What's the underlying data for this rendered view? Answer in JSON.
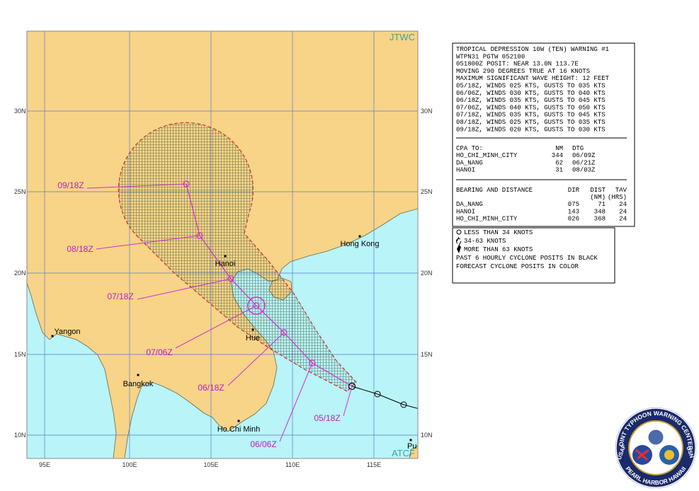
{
  "map": {
    "corner_labels": {
      "top": "JTWC",
      "bottom": "ATCF"
    },
    "lat_labels": [
      "30N",
      "25N",
      "20N",
      "15N",
      "10N"
    ],
    "lon_labels": [
      "95E",
      "100E",
      "105E",
      "110E",
      "115E"
    ],
    "places": [
      "Hanoi",
      "Hong Kong",
      "Yangon",
      "Bangkok",
      "Hue",
      "Ho Chi Minh",
      "Pu"
    ],
    "forecast_labels": [
      "05/18Z",
      "06/06Z",
      "06/18Z",
      "07/06Z",
      "07/18Z",
      "08/18Z",
      "09/18Z"
    ]
  },
  "warning": {
    "lines": [
      "TROPICAL DEPRESSION 10W (TEN) WARNING #1",
      "WTPN31 PGTW 052100",
      "051800Z POSIT: NEAR 13.0N 113.7E",
      "MOVING 290 DEGREES TRUE AT 16 KNOTS",
      "MAXIMUM SIGNIFICANT WAVE HEIGHT: 12 FEET",
      "05/18Z, WINDS 025 KTS, GUSTS TO 035 KTS",
      "06/06Z, WINDS 030 KTS, GUSTS TO 040 KTS",
      "06/18Z, WINDS 035 KTS, GUSTS TO 045 KTS",
      "07/06Z, WINDS 040 KTS, GUSTS TO 050 KTS",
      "07/18Z, WINDS 035 KTS, GUSTS TO 045 KTS",
      "08/18Z, WINDS 025 KTS, GUSTS TO 035 KTS",
      "09/18Z, WINDS 020 KTS, GUSTS TO 030 KTS"
    ],
    "cpa": {
      "header": [
        "CPA TO:",
        "NM",
        "DTG"
      ],
      "rows": [
        [
          "HO_CHI_MINH_CITY",
          "344",
          "06/09Z"
        ],
        [
          "DA_NANG",
          "62",
          "06/21Z"
        ],
        [
          "HANOI",
          "31",
          "08/03Z"
        ]
      ]
    },
    "bearing": {
      "header": [
        "BEARING AND DISTANCE",
        "DIR",
        "DIST",
        "TAV"
      ],
      "subheader": [
        "(NM)",
        "(HRS)"
      ],
      "rows": [
        [
          "DA_NANG",
          "075",
          "71",
          "24"
        ],
        [
          "HANOI",
          "143",
          "348",
          "24"
        ],
        [
          "HO_CHI_MINH_CITY",
          "026",
          "368",
          "24"
        ]
      ]
    }
  },
  "legend": [
    "LESS THAN 34 KNOTS",
    "34-63 KNOTS",
    "MORE THAN 63 KNOTS",
    "PAST 6 HOURLY CYCLONE POSITS IN BLACK",
    "FORECAST CYCLONE POSITS IN COLOR"
  ],
  "emblem": {
    "ring_top": "JOINT TYPHOON WARNING CENTER",
    "ring_bottom": "PEARL HARBOR HAWAII",
    "left": "USAF",
    "right": "USN"
  }
}
